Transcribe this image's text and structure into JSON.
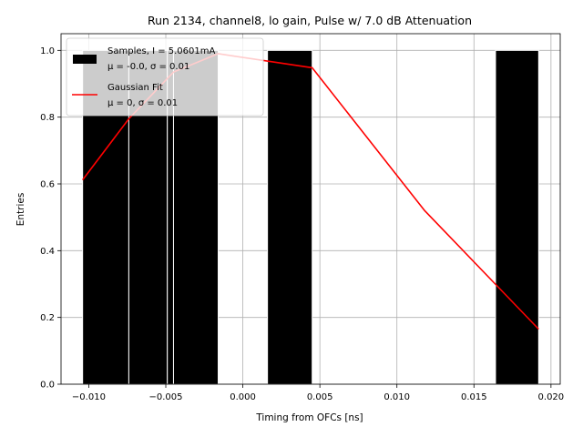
{
  "chart_data": {
    "type": "bar",
    "title": "Run 2134, channel8, lo gain, Pulse w/ 7.0 dB Attenuation",
    "xlabel": "Timing from OFCs [ns]",
    "ylabel": "Entries",
    "xlim": [
      -0.0118,
      0.0206
    ],
    "ylim": [
      0.0,
      1.05
    ],
    "grid": true,
    "xticks": [
      -0.01,
      -0.005,
      0.0,
      0.005,
      0.01,
      0.015,
      0.02
    ],
    "xtick_labels": [
      "−0.010",
      "−0.005",
      "0.000",
      "0.005",
      "0.010",
      "0.015",
      "0.020"
    ],
    "yticks": [
      0.0,
      0.2,
      0.4,
      0.6,
      0.8,
      1.0
    ],
    "ytick_labels": [
      "0.0",
      "0.2",
      "0.4",
      "0.6",
      "0.8",
      "1.0"
    ],
    "bars": [
      {
        "x0": -0.0104,
        "x1": -0.0074,
        "value": 1.0
      },
      {
        "x0": -0.0074,
        "x1": -0.0049,
        "value": 1.0
      },
      {
        "x0": -0.0049,
        "x1": -0.0045,
        "value": 1.0
      },
      {
        "x0": -0.0045,
        "x1": -0.0016,
        "value": 1.0
      },
      {
        "x0": 0.0016,
        "x1": 0.0045,
        "value": 1.0
      },
      {
        "x0": 0.0164,
        "x1": 0.0192,
        "value": 1.0
      }
    ],
    "bar_color": "#000000",
    "bar_edge_color": "#ffffff",
    "series": [
      {
        "name": "Gaussian Fit",
        "color": "#ff0000",
        "x": [
          -0.0104,
          -0.0074,
          -0.0045,
          -0.0016,
          0.0045,
          0.0118,
          0.0192
        ],
        "y": [
          0.612,
          0.795,
          0.935,
          0.99,
          0.948,
          0.52,
          0.165
        ]
      }
    ],
    "legend": {
      "placement": "top-left",
      "entries": [
        {
          "label_line1": "Samples, I = 5.0601mA",
          "label_line2": "μ = -0.0, σ = 0.01",
          "swatch": "bar",
          "color": "#000000"
        },
        {
          "label_line1": "Gaussian Fit",
          "label_line2": "μ = 0, σ = 0.01",
          "swatch": "line",
          "color": "#ff0000"
        }
      ]
    }
  }
}
